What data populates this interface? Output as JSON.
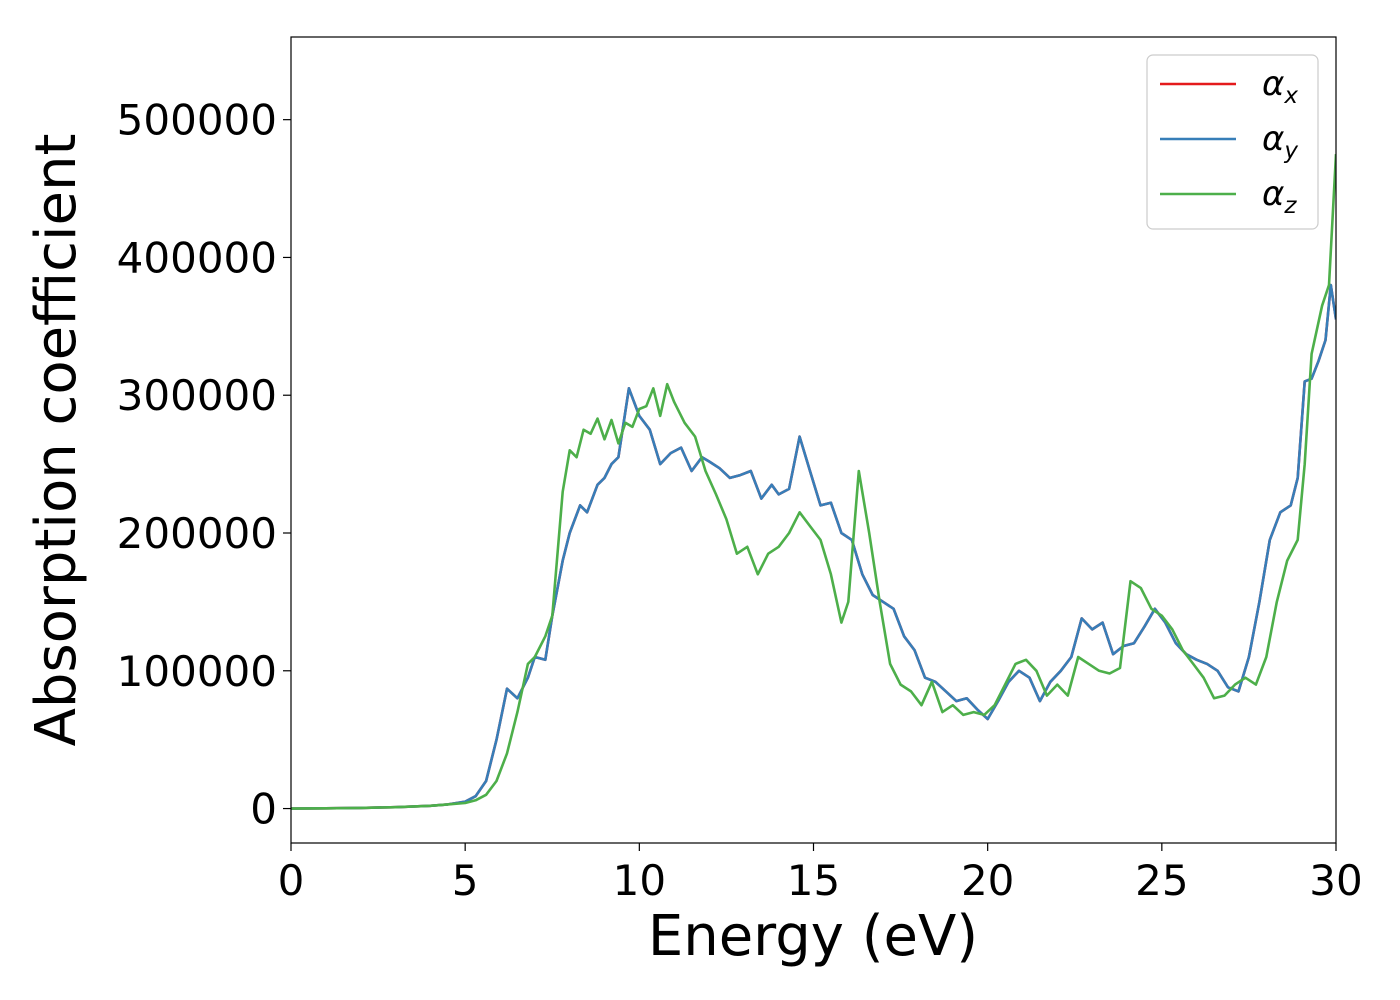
{
  "chart_data": {
    "type": "line",
    "xlabel": "Energy (eV)",
    "ylabel": "Absorption coefficient",
    "xlim": [
      0,
      30
    ],
    "ylim": [
      -25000,
      560000
    ],
    "xticks": [
      0,
      5,
      10,
      15,
      20,
      25,
      30
    ],
    "yticks": [
      0,
      100000,
      200000,
      300000,
      400000,
      500000
    ],
    "grid": false,
    "legend_position": "top-right",
    "series": [
      {
        "name": "αx",
        "sub": "x",
        "color": "#e41a1c",
        "x": [
          0,
          1,
          2,
          3,
          4,
          4.5,
          5,
          5.3,
          5.6,
          5.9,
          6.2,
          6.5,
          6.8,
          7.0,
          7.3,
          7.5,
          7.8,
          8.0,
          8.3,
          8.5,
          8.8,
          9.0,
          9.2,
          9.4,
          9.7,
          10.0,
          10.3,
          10.6,
          10.9,
          11.2,
          11.5,
          11.8,
          12.0,
          12.3,
          12.6,
          12.9,
          13.2,
          13.5,
          13.8,
          14.0,
          14.3,
          14.6,
          14.9,
          15.2,
          15.5,
          15.8,
          16.1,
          16.4,
          16.7,
          17.0,
          17.3,
          17.6,
          17.9,
          18.2,
          18.5,
          18.8,
          19.1,
          19.4,
          19.7,
          20.0,
          20.3,
          20.6,
          20.9,
          21.2,
          21.5,
          21.8,
          22.1,
          22.4,
          22.7,
          23.0,
          23.3,
          23.6,
          23.9,
          24.2,
          24.5,
          24.8,
          25.1,
          25.4,
          25.7,
          26.0,
          26.3,
          26.6,
          26.9,
          27.2,
          27.5,
          27.8,
          28.1,
          28.4,
          28.7,
          28.9,
          29.1,
          29.3,
          29.5,
          29.7,
          29.85,
          30.0
        ],
        "values": [
          0,
          200,
          500,
          1000,
          2000,
          3000,
          5000,
          9000,
          20000,
          50000,
          87000,
          80000,
          95000,
          110000,
          108000,
          140000,
          180000,
          200000,
          220000,
          215000,
          235000,
          240000,
          250000,
          255000,
          305000,
          285000,
          275000,
          250000,
          258000,
          262000,
          245000,
          255000,
          252000,
          247000,
          240000,
          242000,
          245000,
          225000,
          235000,
          228000,
          232000,
          270000,
          245000,
          220000,
          222000,
          200000,
          195000,
          170000,
          155000,
          150000,
          145000,
          125000,
          115000,
          95000,
          92000,
          85000,
          78000,
          80000,
          72000,
          65000,
          78000,
          92000,
          100000,
          95000,
          78000,
          92000,
          100000,
          110000,
          138000,
          130000,
          135000,
          112000,
          118000,
          120000,
          132000,
          145000,
          135000,
          120000,
          112000,
          108000,
          105000,
          100000,
          88000,
          85000,
          110000,
          150000,
          195000,
          215000,
          220000,
          240000,
          310000,
          312000,
          325000,
          340000,
          380000,
          355000
        ]
      },
      {
        "name": "αy",
        "sub": "y",
        "color": "#377eb8",
        "x": [
          0,
          1,
          2,
          3,
          4,
          4.5,
          5,
          5.3,
          5.6,
          5.9,
          6.2,
          6.5,
          6.8,
          7.0,
          7.3,
          7.5,
          7.8,
          8.0,
          8.3,
          8.5,
          8.8,
          9.0,
          9.2,
          9.4,
          9.7,
          10.0,
          10.3,
          10.6,
          10.9,
          11.2,
          11.5,
          11.8,
          12.0,
          12.3,
          12.6,
          12.9,
          13.2,
          13.5,
          13.8,
          14.0,
          14.3,
          14.6,
          14.9,
          15.2,
          15.5,
          15.8,
          16.1,
          16.4,
          16.7,
          17.0,
          17.3,
          17.6,
          17.9,
          18.2,
          18.5,
          18.8,
          19.1,
          19.4,
          19.7,
          20.0,
          20.3,
          20.6,
          20.9,
          21.2,
          21.5,
          21.8,
          22.1,
          22.4,
          22.7,
          23.0,
          23.3,
          23.6,
          23.9,
          24.2,
          24.5,
          24.8,
          25.1,
          25.4,
          25.7,
          26.0,
          26.3,
          26.6,
          26.9,
          27.2,
          27.5,
          27.8,
          28.1,
          28.4,
          28.7,
          28.9,
          29.1,
          29.3,
          29.5,
          29.7,
          29.85,
          30.0
        ],
        "values": [
          0,
          200,
          500,
          1000,
          2000,
          3000,
          5000,
          9000,
          20000,
          50000,
          87000,
          80000,
          95000,
          110000,
          108000,
          140000,
          180000,
          200000,
          220000,
          215000,
          235000,
          240000,
          250000,
          255000,
          305000,
          285000,
          275000,
          250000,
          258000,
          262000,
          245000,
          255000,
          252000,
          247000,
          240000,
          242000,
          245000,
          225000,
          235000,
          228000,
          232000,
          270000,
          245000,
          220000,
          222000,
          200000,
          195000,
          170000,
          155000,
          150000,
          145000,
          125000,
          115000,
          95000,
          92000,
          85000,
          78000,
          80000,
          72000,
          65000,
          78000,
          92000,
          100000,
          95000,
          78000,
          92000,
          100000,
          110000,
          138000,
          130000,
          135000,
          112000,
          118000,
          120000,
          132000,
          145000,
          135000,
          120000,
          112000,
          108000,
          105000,
          100000,
          88000,
          85000,
          110000,
          150000,
          195000,
          215000,
          220000,
          240000,
          310000,
          312000,
          325000,
          340000,
          380000,
          355000
        ]
      },
      {
        "name": "αz",
        "sub": "z",
        "color": "#4daf4a",
        "x": [
          0,
          1,
          2,
          3,
          4,
          4.5,
          5,
          5.3,
          5.6,
          5.9,
          6.2,
          6.5,
          6.8,
          7.0,
          7.3,
          7.5,
          7.8,
          8.0,
          8.2,
          8.4,
          8.6,
          8.8,
          9.0,
          9.2,
          9.4,
          9.6,
          9.8,
          10.0,
          10.2,
          10.4,
          10.6,
          10.8,
          11.0,
          11.3,
          11.6,
          11.9,
          12.2,
          12.5,
          12.8,
          13.1,
          13.4,
          13.7,
          14.0,
          14.3,
          14.6,
          14.9,
          15.2,
          15.5,
          15.8,
          16.0,
          16.3,
          16.6,
          16.9,
          17.2,
          17.5,
          17.8,
          18.1,
          18.4,
          18.7,
          19.0,
          19.3,
          19.6,
          19.9,
          20.2,
          20.5,
          20.8,
          21.1,
          21.4,
          21.7,
          22.0,
          22.3,
          22.6,
          22.9,
          23.2,
          23.5,
          23.8,
          24.1,
          24.4,
          24.7,
          25.0,
          25.3,
          25.6,
          25.9,
          26.2,
          26.5,
          26.8,
          27.1,
          27.4,
          27.7,
          28.0,
          28.3,
          28.6,
          28.9,
          29.1,
          29.3,
          29.6,
          29.8,
          30.0
        ],
        "values": [
          0,
          200,
          500,
          1000,
          2000,
          3000,
          4000,
          6000,
          10000,
          20000,
          40000,
          70000,
          105000,
          110000,
          125000,
          140000,
          230000,
          260000,
          255000,
          275000,
          272000,
          283000,
          268000,
          282000,
          265000,
          280000,
          277000,
          290000,
          292000,
          305000,
          285000,
          308000,
          295000,
          280000,
          270000,
          245000,
          228000,
          210000,
          185000,
          190000,
          170000,
          185000,
          190000,
          200000,
          215000,
          205000,
          195000,
          170000,
          135000,
          150000,
          245000,
          200000,
          150000,
          105000,
          90000,
          85000,
          75000,
          92000,
          70000,
          75000,
          68000,
          70000,
          68000,
          75000,
          90000,
          105000,
          108000,
          100000,
          82000,
          90000,
          82000,
          110000,
          105000,
          100000,
          98000,
          102000,
          165000,
          160000,
          145000,
          140000,
          130000,
          115000,
          105000,
          95000,
          80000,
          82000,
          90000,
          95000,
          90000,
          110000,
          150000,
          180000,
          195000,
          250000,
          330000,
          365000,
          380000,
          475000
        ]
      }
    ]
  }
}
